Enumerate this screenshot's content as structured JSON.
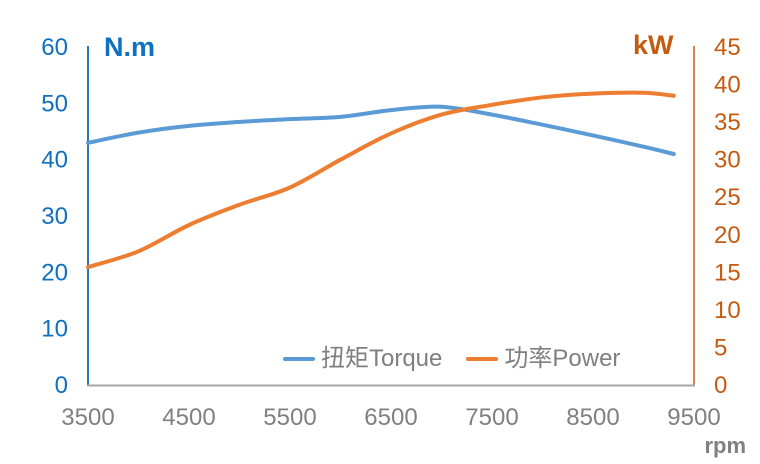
{
  "chart_data": {
    "type": "line",
    "title": "",
    "x": [
      3500,
      4000,
      4500,
      5000,
      5500,
      6000,
      6500,
      7000,
      7500,
      8000,
      8500,
      9000,
      9300
    ],
    "series": [
      {
        "name": "扭矩Torque",
        "axis": "left",
        "color": "#5B9BD5",
        "values": [
          43.0,
          44.8,
          46.0,
          46.7,
          47.2,
          47.6,
          48.8,
          49.4,
          48.0,
          46.2,
          44.3,
          42.3,
          41.0
        ]
      },
      {
        "name": "功率Power",
        "axis": "right",
        "color": "#ED7D31",
        "values": [
          15.7,
          17.8,
          21.3,
          24.0,
          26.3,
          30.0,
          33.5,
          36.0,
          37.3,
          38.3,
          38.8,
          38.9,
          38.5
        ]
      }
    ],
    "left_axis": {
      "title": "N.m",
      "min": 0,
      "max": 60,
      "ticks": [
        0,
        10,
        20,
        30,
        40,
        50,
        60
      ],
      "color": "#0F70C0",
      "line_color": "#2E75B6"
    },
    "right_axis": {
      "title": "kW",
      "min": 0,
      "max": 45,
      "ticks": [
        0,
        5,
        10,
        15,
        20,
        25,
        30,
        35,
        40,
        45
      ],
      "color": "#C55A11",
      "line_color": "#C55A11"
    },
    "x_axis": {
      "title": "rpm",
      "min": 3500,
      "max": 9500,
      "ticks": [
        3500,
        4500,
        5500,
        6500,
        7500,
        8500,
        9500
      ],
      "color": "#808080",
      "line_color": "#A6A6A6"
    },
    "legend": {
      "position": "bottom-inside",
      "text_color": "#7F7F7F",
      "entries": [
        {
          "label": "扭矩Torque",
          "color": "#5B9BD5"
        },
        {
          "label": "功率Power",
          "color": "#ED7D31"
        }
      ]
    },
    "grid": "off"
  }
}
